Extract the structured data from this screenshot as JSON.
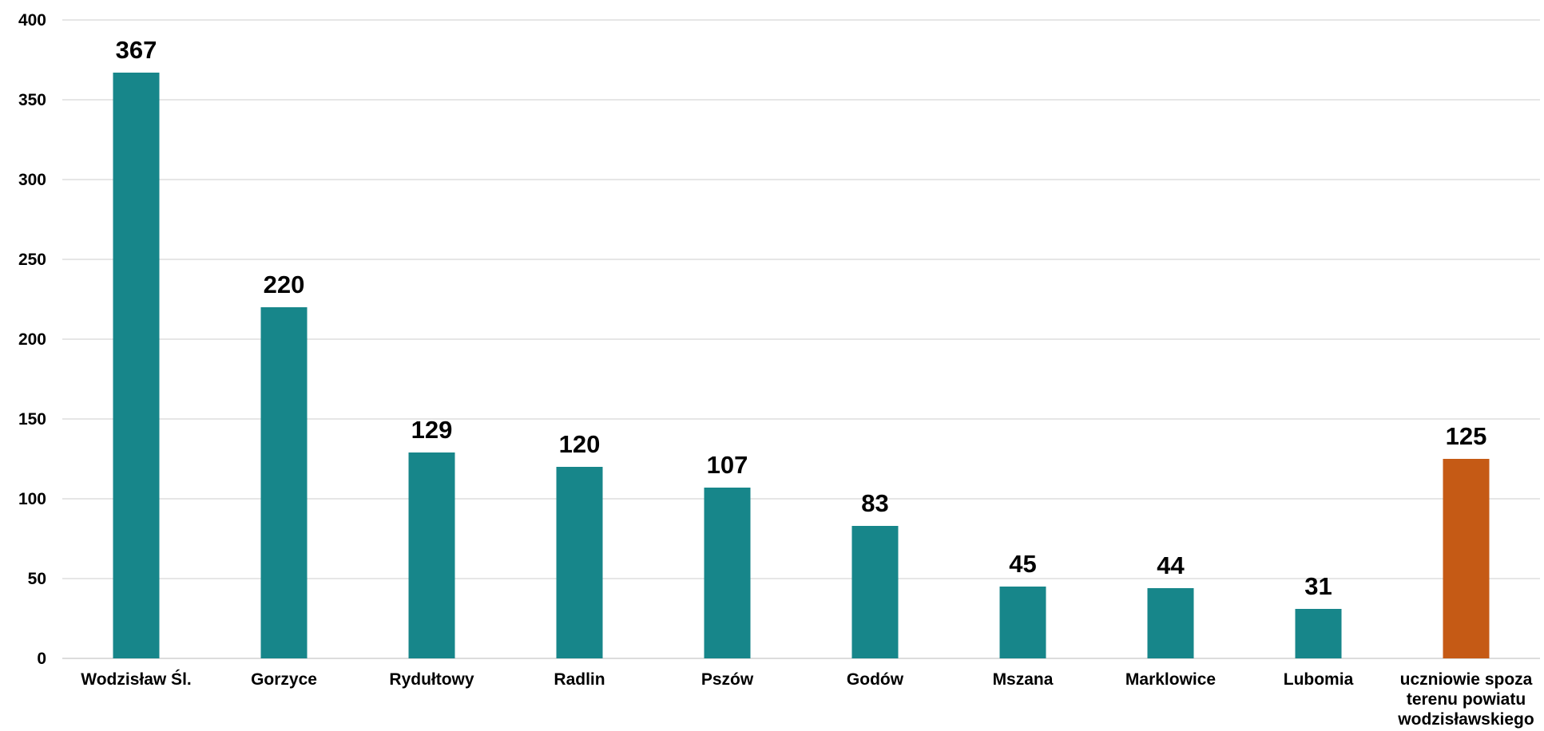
{
  "chart_data": {
    "type": "bar",
    "categories": [
      [
        "Wodzisław Śl."
      ],
      [
        "Gorzyce"
      ],
      [
        "Rydułtowy"
      ],
      [
        "Radlin"
      ],
      [
        "Pszów"
      ],
      [
        "Godów"
      ],
      [
        "Mszana"
      ],
      [
        "Marklowice"
      ],
      [
        "Lubomia"
      ],
      [
        "uczniowie spoza",
        "terenu powiatu",
        "wodzisławskiego"
      ]
    ],
    "values": [
      367,
      220,
      129,
      120,
      107,
      83,
      45,
      44,
      31,
      125
    ],
    "data_labels": [
      "367",
      "220",
      "129",
      "120",
      "107",
      "83",
      "45",
      "44",
      "31",
      "125"
    ],
    "yticks": [
      0,
      50,
      100,
      150,
      200,
      250,
      300,
      350,
      400
    ],
    "ylim": [
      0,
      400
    ],
    "grid": true,
    "legend": "none",
    "colors": {
      "default_bar": "#17868a",
      "highlight_bar": "#c55a15"
    },
    "highlight_index": 9
  }
}
